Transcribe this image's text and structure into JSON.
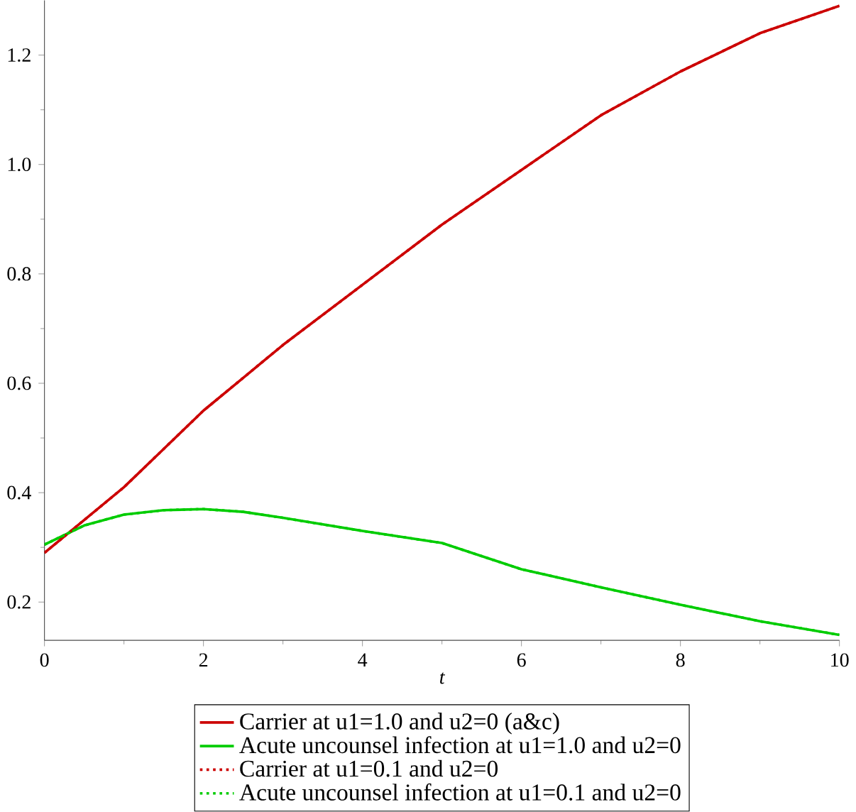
{
  "chart_data": {
    "type": "line",
    "xlabel": "t",
    "xlim": [
      0,
      10
    ],
    "ylim": [
      0.13,
      1.3
    ],
    "xticks": [
      0,
      2,
      4,
      6,
      8,
      10
    ],
    "yticks": [
      0.2,
      0.4,
      0.6,
      0.8,
      {
        "value": 1.0,
        "label": "1.0"
      },
      1.2
    ],
    "legend": "bottom",
    "grid": false,
    "marker": "none",
    "x": [
      0,
      0.5,
      1,
      1.5,
      2,
      2.5,
      3,
      4,
      5,
      6,
      7,
      8,
      9,
      10
    ],
    "series": [
      {
        "name": "Carrier at u1=1.0 and u2=0   (a&c)",
        "color": "#cc0000",
        "line_style": "solid",
        "values": [
          0.29,
          0.35,
          0.41,
          0.48,
          0.55,
          0.61,
          0.67,
          0.78,
          0.89,
          0.99,
          1.09,
          1.17,
          1.24,
          1.29
        ]
      },
      {
        "name": "Acute uncounsel infection at u1=1.0 and u2=0",
        "color": "#00cc00",
        "line_style": "solid",
        "values": [
          0.305,
          0.34,
          0.36,
          0.368,
          0.37,
          0.365,
          0.354,
          0.33,
          0.308,
          0.26,
          0.227,
          0.195,
          0.165,
          0.14
        ]
      },
      {
        "name": "Carrier at u1=0.1 and u2=0",
        "color": "#cc0000",
        "line_style": "dotted",
        "values": [
          0.29,
          0.35,
          0.41,
          0.48,
          0.55,
          0.61,
          0.67,
          0.78,
          0.89,
          0.99,
          1.09,
          1.17,
          1.24,
          1.29
        ]
      },
      {
        "name": "Acute uncounsel infection at u1=0.1 and u2=0",
        "color": "#00cc00",
        "line_style": "dotted",
        "values": [
          0.305,
          0.34,
          0.36,
          0.368,
          0.37,
          0.365,
          0.354,
          0.33,
          0.308,
          0.26,
          0.227,
          0.195,
          0.165,
          0.14
        ]
      }
    ]
  }
}
